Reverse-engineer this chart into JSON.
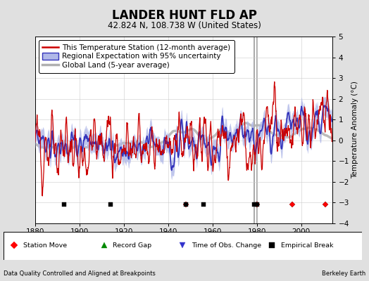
{
  "title": "LANDER HUNT FLD AP",
  "subtitle": "42.824 N, 108.738 W (United States)",
  "ylabel": "Temperature Anomaly (°C)",
  "xlabel_left": "Data Quality Controlled and Aligned at Breakpoints",
  "xlabel_right": "Berkeley Earth",
  "ylim": [
    -4,
    5
  ],
  "xlim": [
    1880,
    2014
  ],
  "bg_color": "#e0e0e0",
  "plot_bg_color": "#ffffff",
  "grid_color": "#cccccc",
  "station_move_years": [
    1948,
    1980,
    1996,
    2011
  ],
  "record_gap_years": [],
  "tobs_change_years": [],
  "empirical_break_years": [
    1893,
    1914,
    1948,
    1956,
    1979,
    1980
  ],
  "breakline_years": [
    1979,
    1980
  ],
  "x_ticks": [
    1880,
    1900,
    1920,
    1940,
    1960,
    1980,
    2000
  ],
  "y_ticks": [
    -4,
    -3,
    -2,
    -1,
    0,
    1,
    2,
    3,
    4,
    5
  ],
  "seed": 12345,
  "start_year": 1880,
  "end_year": 2014,
  "regional_color": "#3333bb",
  "regional_fill": "#b0b8e8",
  "station_color": "#cc0000",
  "global_color": "#b0b0b0",
  "legend_fontsize": 7.5,
  "title_fontsize": 12,
  "subtitle_fontsize": 8.5,
  "marker_y": -3.1
}
